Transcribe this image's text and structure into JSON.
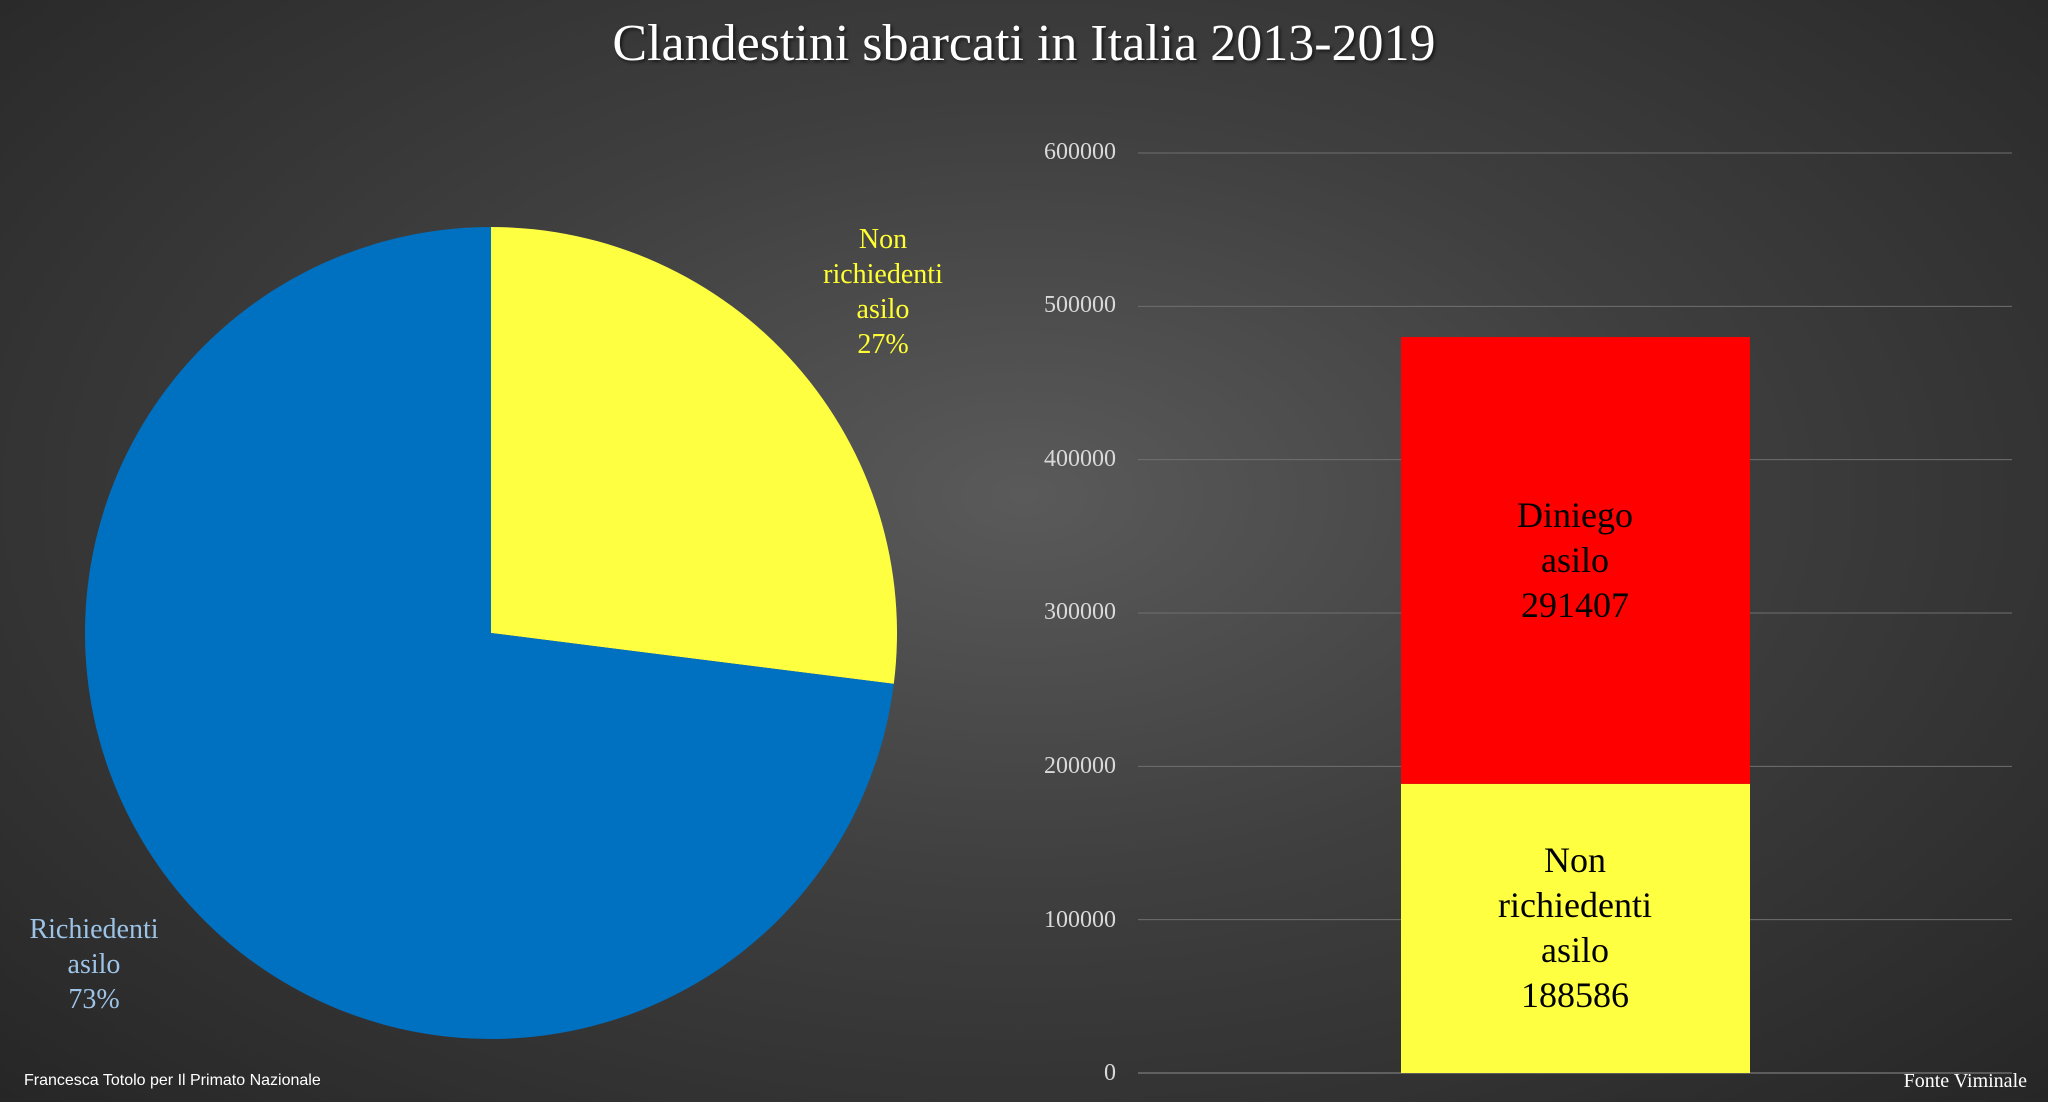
{
  "title": "Clandestini sbarcati in Italia 2013-2019",
  "chart_data": [
    {
      "type": "pie",
      "slices": [
        {
          "name": "Non richiedenti asilo",
          "label_lines": [
            "Non",
            "richiedenti",
            "asilo"
          ],
          "percent_label": "27%",
          "value": 27,
          "color": "#ffff41"
        },
        {
          "name": "Richiedenti asilo",
          "label_lines": [
            "Richiedenti",
            "asilo"
          ],
          "percent_label": "73%",
          "value": 73,
          "color": "#0070c0"
        }
      ]
    },
    {
      "type": "bar",
      "stacked": true,
      "ylim": [
        0,
        600000
      ],
      "yticks": [
        "0",
        "100000",
        "200000",
        "300000",
        "400000",
        "500000",
        "600000"
      ],
      "grid": true,
      "series": [
        {
          "name": "Non richiedenti asilo",
          "label_lines": [
            "Non",
            "richiedenti",
            "asilo"
          ],
          "value_label": "188586",
          "value": 188586,
          "color": "#ffff41"
        },
        {
          "name": "Diniego asilo",
          "label_lines": [
            "Diniego",
            "asilo"
          ],
          "value_label": "291407",
          "value": 291407,
          "color": "#ff0000"
        }
      ]
    }
  ],
  "credit": "Francesca Totolo per Il Primato Nazionale",
  "source": "Fonte Viminale"
}
